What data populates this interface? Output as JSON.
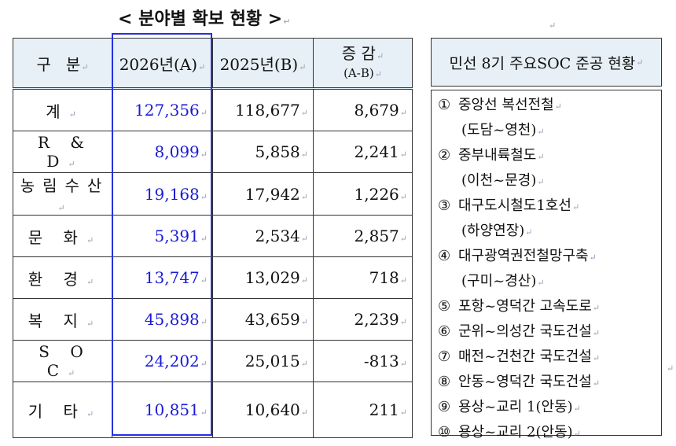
{
  "title": "< 분야별 확보 현황 >",
  "table": {
    "headers": {
      "category": "구   분",
      "col_a": "2026년(A)",
      "col_b": "2025년(B)",
      "col_c_top": "증 감",
      "col_c_bottom": "(A-B)"
    },
    "rows": [
      {
        "category": "계",
        "a": "127,356",
        "b": "118,677",
        "c": "8,679"
      },
      {
        "category": "R & D",
        "a": "8,099",
        "b": "5,858",
        "c": "2,241"
      },
      {
        "category": "농림수산",
        "a": "19,168",
        "b": "17,942",
        "c": "1,226"
      },
      {
        "category": "문 화",
        "a": "5,391",
        "b": "2,534",
        "c": "2,857"
      },
      {
        "category": "환 경",
        "a": "13,747",
        "b": "13,029",
        "c": "718"
      },
      {
        "category": "복 지",
        "a": "45,898",
        "b": "43,659",
        "c": "2,239"
      },
      {
        "category": "S O C",
        "a": "24,202",
        "b": "25,015",
        "c": "-813"
      },
      {
        "category": "기 타",
        "a": "10,851",
        "b": "10,640",
        "c": "211"
      }
    ]
  },
  "panel": {
    "title": "민선 8기 주요SOC 준공 현황",
    "items": [
      {
        "num": "①",
        "line1": "중앙선 복선전철",
        "line2": "(도담~영천)"
      },
      {
        "num": "②",
        "line1": "중부내륙철도",
        "line2": "(이천~문경)"
      },
      {
        "num": "③",
        "line1": "대구도시철도1호선",
        "line2": "(하양연장)"
      },
      {
        "num": "④",
        "line1": "대구광역권전철망구축",
        "line2": "(구미~경산)"
      },
      {
        "num": "⑤",
        "line1": "포항~영덕간 고속도로",
        "line2": ""
      },
      {
        "num": "⑥",
        "line1": "군위~의성간 국도건설",
        "line2": ""
      },
      {
        "num": "⑦",
        "line1": "매전~건천간 국도건설",
        "line2": ""
      },
      {
        "num": "⑧",
        "line1": "안동~영덕간 국도건설",
        "line2": ""
      },
      {
        "num": "⑨",
        "line1": "용상~교리 1(안동)",
        "line2": ""
      },
      {
        "num": "⑩",
        "line1": "용상~교리 2(안동)",
        "line2": ""
      }
    ]
  }
}
